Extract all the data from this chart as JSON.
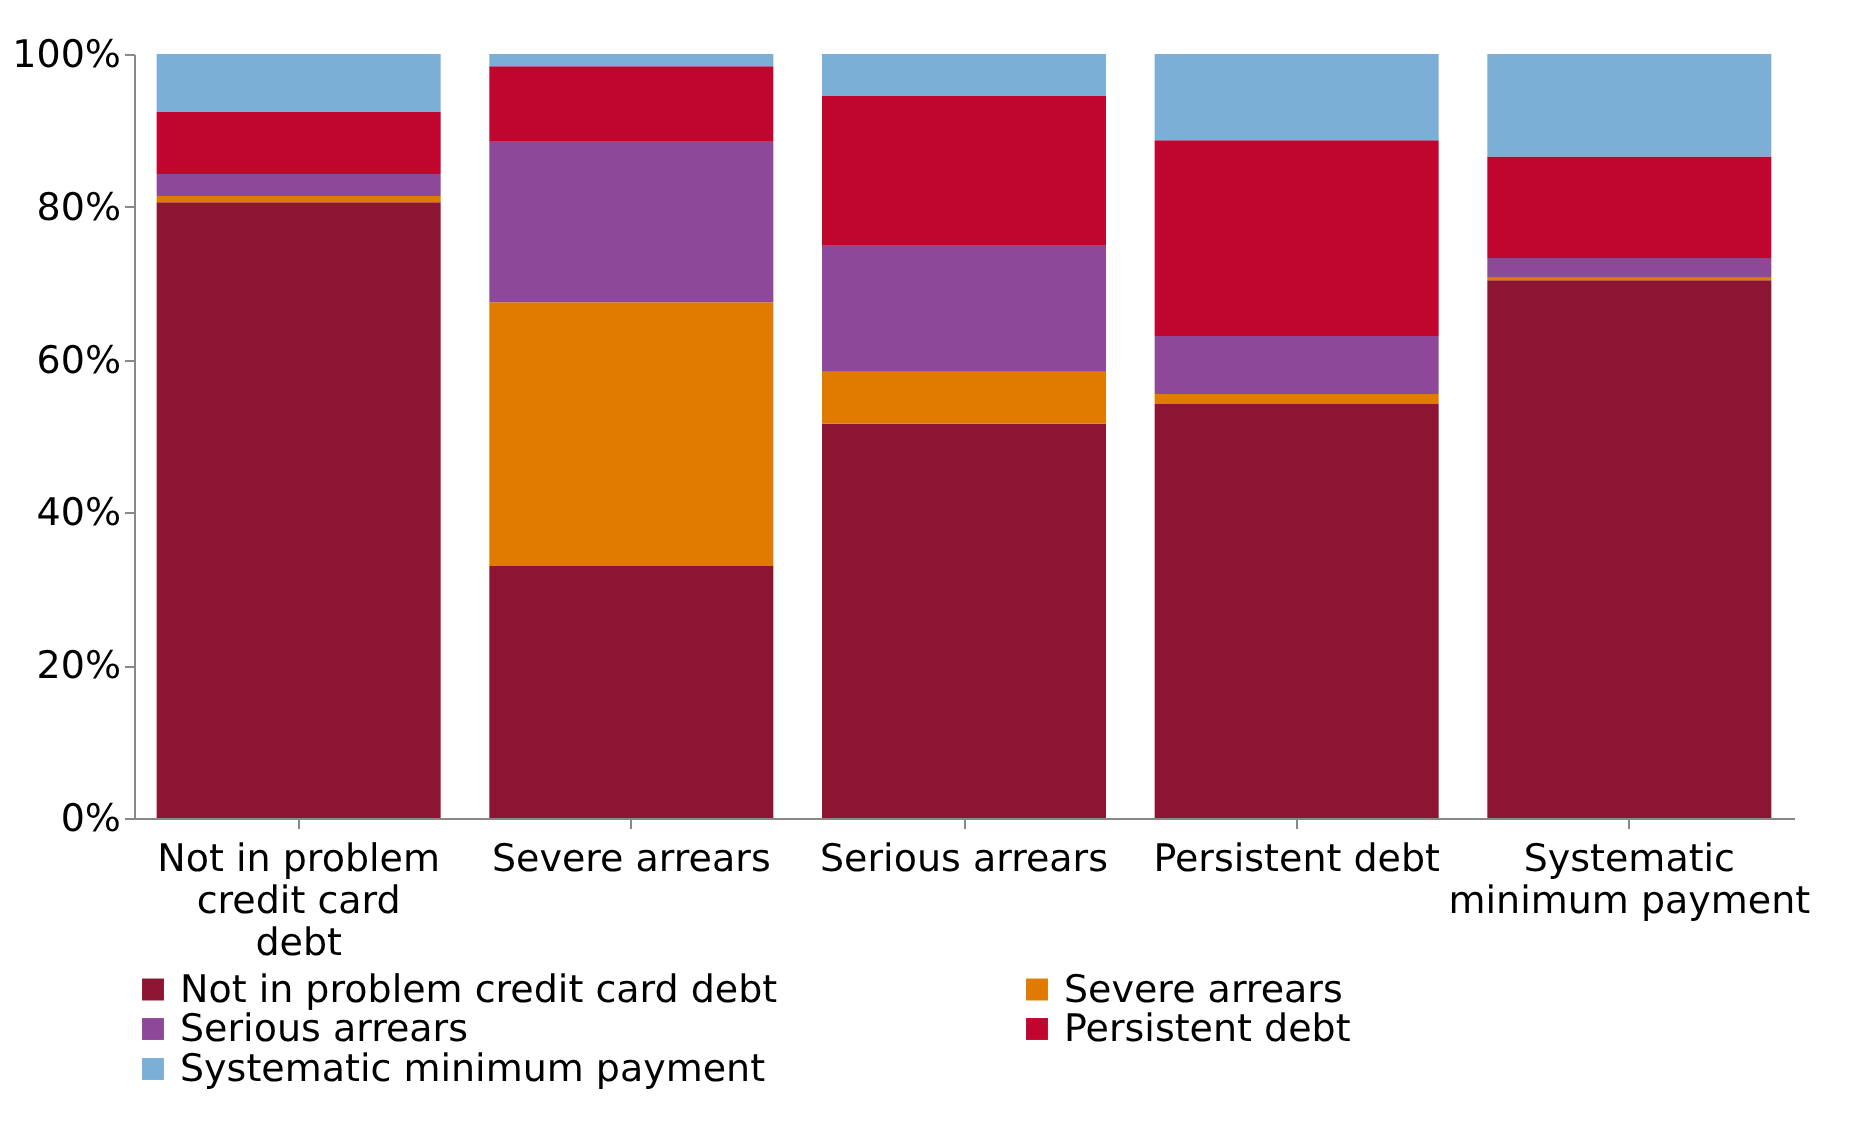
{
  "chart_data": {
    "type": "bar",
    "stacked": true,
    "grid": false,
    "legend": "bottom",
    "categories": [
      "Not in problem credit card debt",
      "Severe arrears",
      "Serious arrears",
      "Persistent debt",
      "Systematic minimum payment"
    ],
    "ylim": [
      0,
      100
    ],
    "yticks": [
      {
        "value": 0,
        "label": "0%"
      },
      {
        "value": 20,
        "label": "20%"
      },
      {
        "value": 40,
        "label": "40%"
      },
      {
        "value": 60,
        "label": "60%"
      },
      {
        "value": 80,
        "label": "80%"
      },
      {
        "value": 100,
        "label": "100%"
      }
    ],
    "series": [
      {
        "name": "Not in problem credit card debt",
        "color": "#8b1533",
        "values": [
          80.6,
          33.0,
          51.6,
          54.2,
          70.4
        ]
      },
      {
        "name": "Severe arrears",
        "color": "#e07b00",
        "values": [
          0.8,
          34.5,
          6.8,
          1.3,
          0.3
        ]
      },
      {
        "name": "Serious arrears",
        "color": "#8e4899",
        "values": [
          2.9,
          21.0,
          16.5,
          7.6,
          2.6
        ]
      },
      {
        "name": "Persistent debt",
        "color": "#c0052f",
        "values": [
          8.1,
          9.9,
          19.6,
          25.6,
          13.3
        ]
      },
      {
        "name": "Systematic minimum payment",
        "color": "#7bafd6",
        "values": [
          7.6,
          1.6,
          5.5,
          11.3,
          13.4
        ]
      }
    ]
  }
}
